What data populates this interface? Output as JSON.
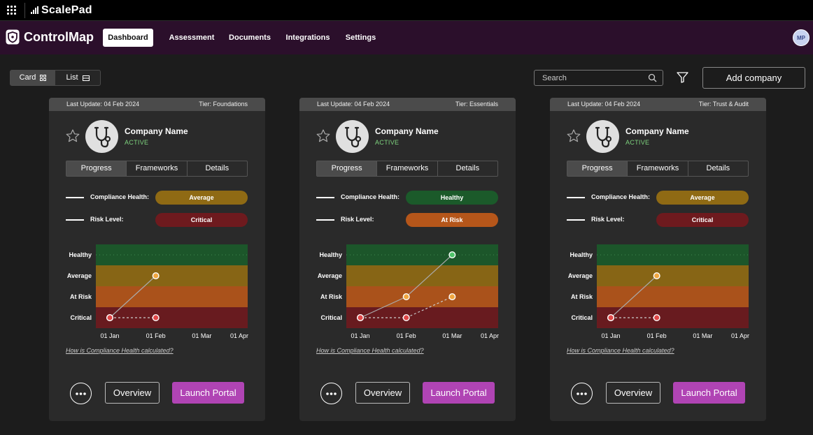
{
  "topbar": {
    "brand": "ScalePad"
  },
  "nav": {
    "app_name": "ControlMap",
    "tabs": [
      {
        "label": "Dashboard",
        "active": true
      },
      {
        "label": "Assessment"
      },
      {
        "label": "Documents"
      },
      {
        "label": "Integrations"
      },
      {
        "label": "Settings"
      }
    ],
    "avatar": "MP"
  },
  "toolbar": {
    "view_card": "Card",
    "view_list": "List",
    "search_placeholder": "Search",
    "add_company": "Add company"
  },
  "colors": {
    "healthy": "#1b5a2a",
    "average": "#8f6a14",
    "at_risk": "#b5561a",
    "critical": "#6e1a1e",
    "launch": "#b044b4"
  },
  "cards": [
    {
      "last_update": "Last Update: 04 Feb 2024",
      "tier": "Tier: Foundations",
      "company_name": "Company Name",
      "status": "ACTIVE",
      "tabs": [
        "Progress",
        "Frameworks",
        "Details"
      ],
      "compliance_label": "Compliance Health:",
      "compliance_value": "Average",
      "risk_label": "Risk Level:",
      "risk_value": "Critical",
      "how_link": "How is Compliance Health calculated?",
      "overview": "Overview",
      "launch": "Launch Portal",
      "chart_data": {
        "type": "line",
        "y_levels": [
          "Critical",
          "At Risk",
          "Average",
          "Healthy"
        ],
        "x": [
          "01 Jan",
          "01 Feb",
          "01 Mar",
          "01 Apr"
        ],
        "series": [
          {
            "style": "solid",
            "points": [
              {
                "x": "01 Jan",
                "y": "Critical"
              },
              {
                "x": "01 Feb",
                "y": "Average"
              }
            ]
          },
          {
            "style": "dashed",
            "points": [
              {
                "x": "01 Jan",
                "y": "Critical"
              },
              {
                "x": "01 Feb",
                "y": "Critical"
              }
            ]
          }
        ]
      }
    },
    {
      "last_update": "Last Update: 04 Feb 2024",
      "tier": "Tier: Essentials",
      "company_name": "Company Name",
      "status": "ACTIVE",
      "tabs": [
        "Progress",
        "Frameworks",
        "Details"
      ],
      "compliance_label": "Compliance Health:",
      "compliance_value": "Healthy",
      "risk_label": "Risk Level:",
      "risk_value": "At Risk",
      "how_link": "How is Compliance Health calculated?",
      "overview": "Overview",
      "launch": "Launch Portal",
      "chart_data": {
        "type": "line",
        "y_levels": [
          "Critical",
          "At Risk",
          "Average",
          "Healthy"
        ],
        "x": [
          "01 Jan",
          "01 Feb",
          "01 Mar",
          "01 Apr"
        ],
        "series": [
          {
            "style": "solid",
            "points": [
              {
                "x": "01 Jan",
                "y": "Critical"
              },
              {
                "x": "01 Feb",
                "y": "At Risk"
              },
              {
                "x": "01 Mar",
                "y": "Healthy"
              }
            ]
          },
          {
            "style": "dashed",
            "points": [
              {
                "x": "01 Jan",
                "y": "Critical"
              },
              {
                "x": "01 Feb",
                "y": "Critical"
              },
              {
                "x": "01 Mar",
                "y": "At Risk"
              }
            ]
          }
        ]
      }
    },
    {
      "last_update": "Last Update: 04 Feb 2024",
      "tier": "Tier:  Trust & Audit",
      "company_name": "Company Name",
      "status": "ACTIVE",
      "tabs": [
        "Progress",
        "Frameworks",
        "Details"
      ],
      "compliance_label": "Compliance Health:",
      "compliance_value": "Average",
      "risk_label": "Risk Level:",
      "risk_value": "Critical",
      "how_link": "How is Compliance Health calculated?",
      "overview": "Overview",
      "launch": "Launch Portal",
      "chart_data": {
        "type": "line",
        "y_levels": [
          "Critical",
          "At Risk",
          "Average",
          "Healthy"
        ],
        "x": [
          "01 Jan",
          "01 Feb",
          "01 Mar",
          "01 Apr"
        ],
        "series": [
          {
            "style": "solid",
            "points": [
              {
                "x": "01 Jan",
                "y": "Critical"
              },
              {
                "x": "01 Feb",
                "y": "Average"
              }
            ]
          },
          {
            "style": "dashed",
            "points": [
              {
                "x": "01 Jan",
                "y": "Critical"
              },
              {
                "x": "01 Feb",
                "y": "Critical"
              }
            ]
          }
        ]
      }
    }
  ]
}
